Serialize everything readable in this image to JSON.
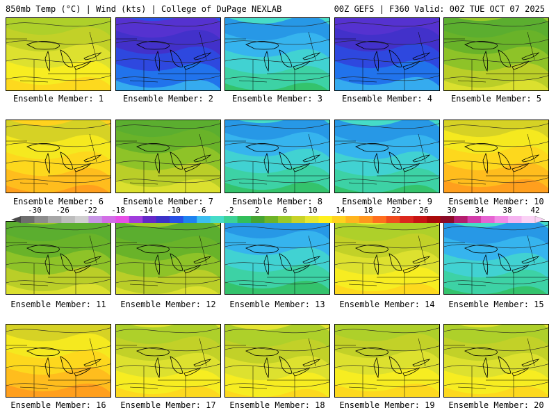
{
  "header": {
    "left": "850mb Temp (°C) | Wind (kts) | College of DuPage NEXLAB",
    "right": "00Z GEFS | F360 Valid: 00Z TUE OCT 07 2025"
  },
  "panels": [
    {
      "caption": "Ensemble Member: 1",
      "palette": "warm-yellow"
    },
    {
      "caption": "Ensemble Member: 2",
      "palette": "cold-blue"
    },
    {
      "caption": "Ensemble Member: 3",
      "palette": "cool-teal"
    },
    {
      "caption": "Ensemble Member: 4",
      "palette": "cold-blue"
    },
    {
      "caption": "Ensemble Member: 5",
      "palette": "mild-green"
    },
    {
      "caption": "Ensemble Member: 6",
      "palette": "warm-orange"
    },
    {
      "caption": "Ensemble Member: 7",
      "palette": "mild-green"
    },
    {
      "caption": "Ensemble Member: 8",
      "palette": "cool-teal"
    },
    {
      "caption": "Ensemble Member: 9",
      "palette": "cool-teal"
    },
    {
      "caption": "Ensemble Member: 10",
      "palette": "warm-orange"
    },
    {
      "caption": "Ensemble Member: 11",
      "palette": "mild-green"
    },
    {
      "caption": "Ensemble Member: 12",
      "palette": "mild-green"
    },
    {
      "caption": "Ensemble Member: 13",
      "palette": "cool-teal"
    },
    {
      "caption": "Ensemble Member: 14",
      "palette": "warm-yellow"
    },
    {
      "caption": "Ensemble Member: 15",
      "palette": "cool-teal"
    },
    {
      "caption": "Ensemble Member: 16",
      "palette": "warm-orange"
    },
    {
      "caption": "Ensemble Member: 17",
      "palette": "warm-yellow"
    },
    {
      "caption": "Ensemble Member: 18",
      "palette": "warm-yellow"
    },
    {
      "caption": "Ensemble Member: 19",
      "palette": "warm-yellow"
    },
    {
      "caption": "Ensemble Member: 20",
      "palette": "warm-yellow"
    }
  ],
  "colorbar": {
    "labels": [
      "-30",
      "-26",
      "-22",
      "-18",
      "-14",
      "-10",
      "-6",
      "-2",
      "2",
      "6",
      "10",
      "14",
      "18",
      "22",
      "26",
      "30",
      "34",
      "38",
      "42"
    ],
    "colors": [
      "#6e6e6e",
      "#8c8c8c",
      "#a6a6a6",
      "#bdbdbd",
      "#d0d0d0",
      "#c896e6",
      "#d26ee6",
      "#e650e6",
      "#a03cdc",
      "#6428c8",
      "#3c32c8",
      "#2850e6",
      "#1e82f0",
      "#3cbef0",
      "#46dcc8",
      "#3cd296",
      "#32be5a",
      "#46a532",
      "#6eb428",
      "#9bc828",
      "#c8d228",
      "#e6e632",
      "#fff01e",
      "#ffd21e",
      "#ffb41e",
      "#ff961e",
      "#ff6e1e",
      "#f04b1e",
      "#dc281e",
      "#c81414",
      "#aa0a0a",
      "#8c0a28",
      "#b41e6e",
      "#d23caa",
      "#e664d2",
      "#f08ce6",
      "#f5b4f0",
      "#fad2f5"
    ]
  }
}
